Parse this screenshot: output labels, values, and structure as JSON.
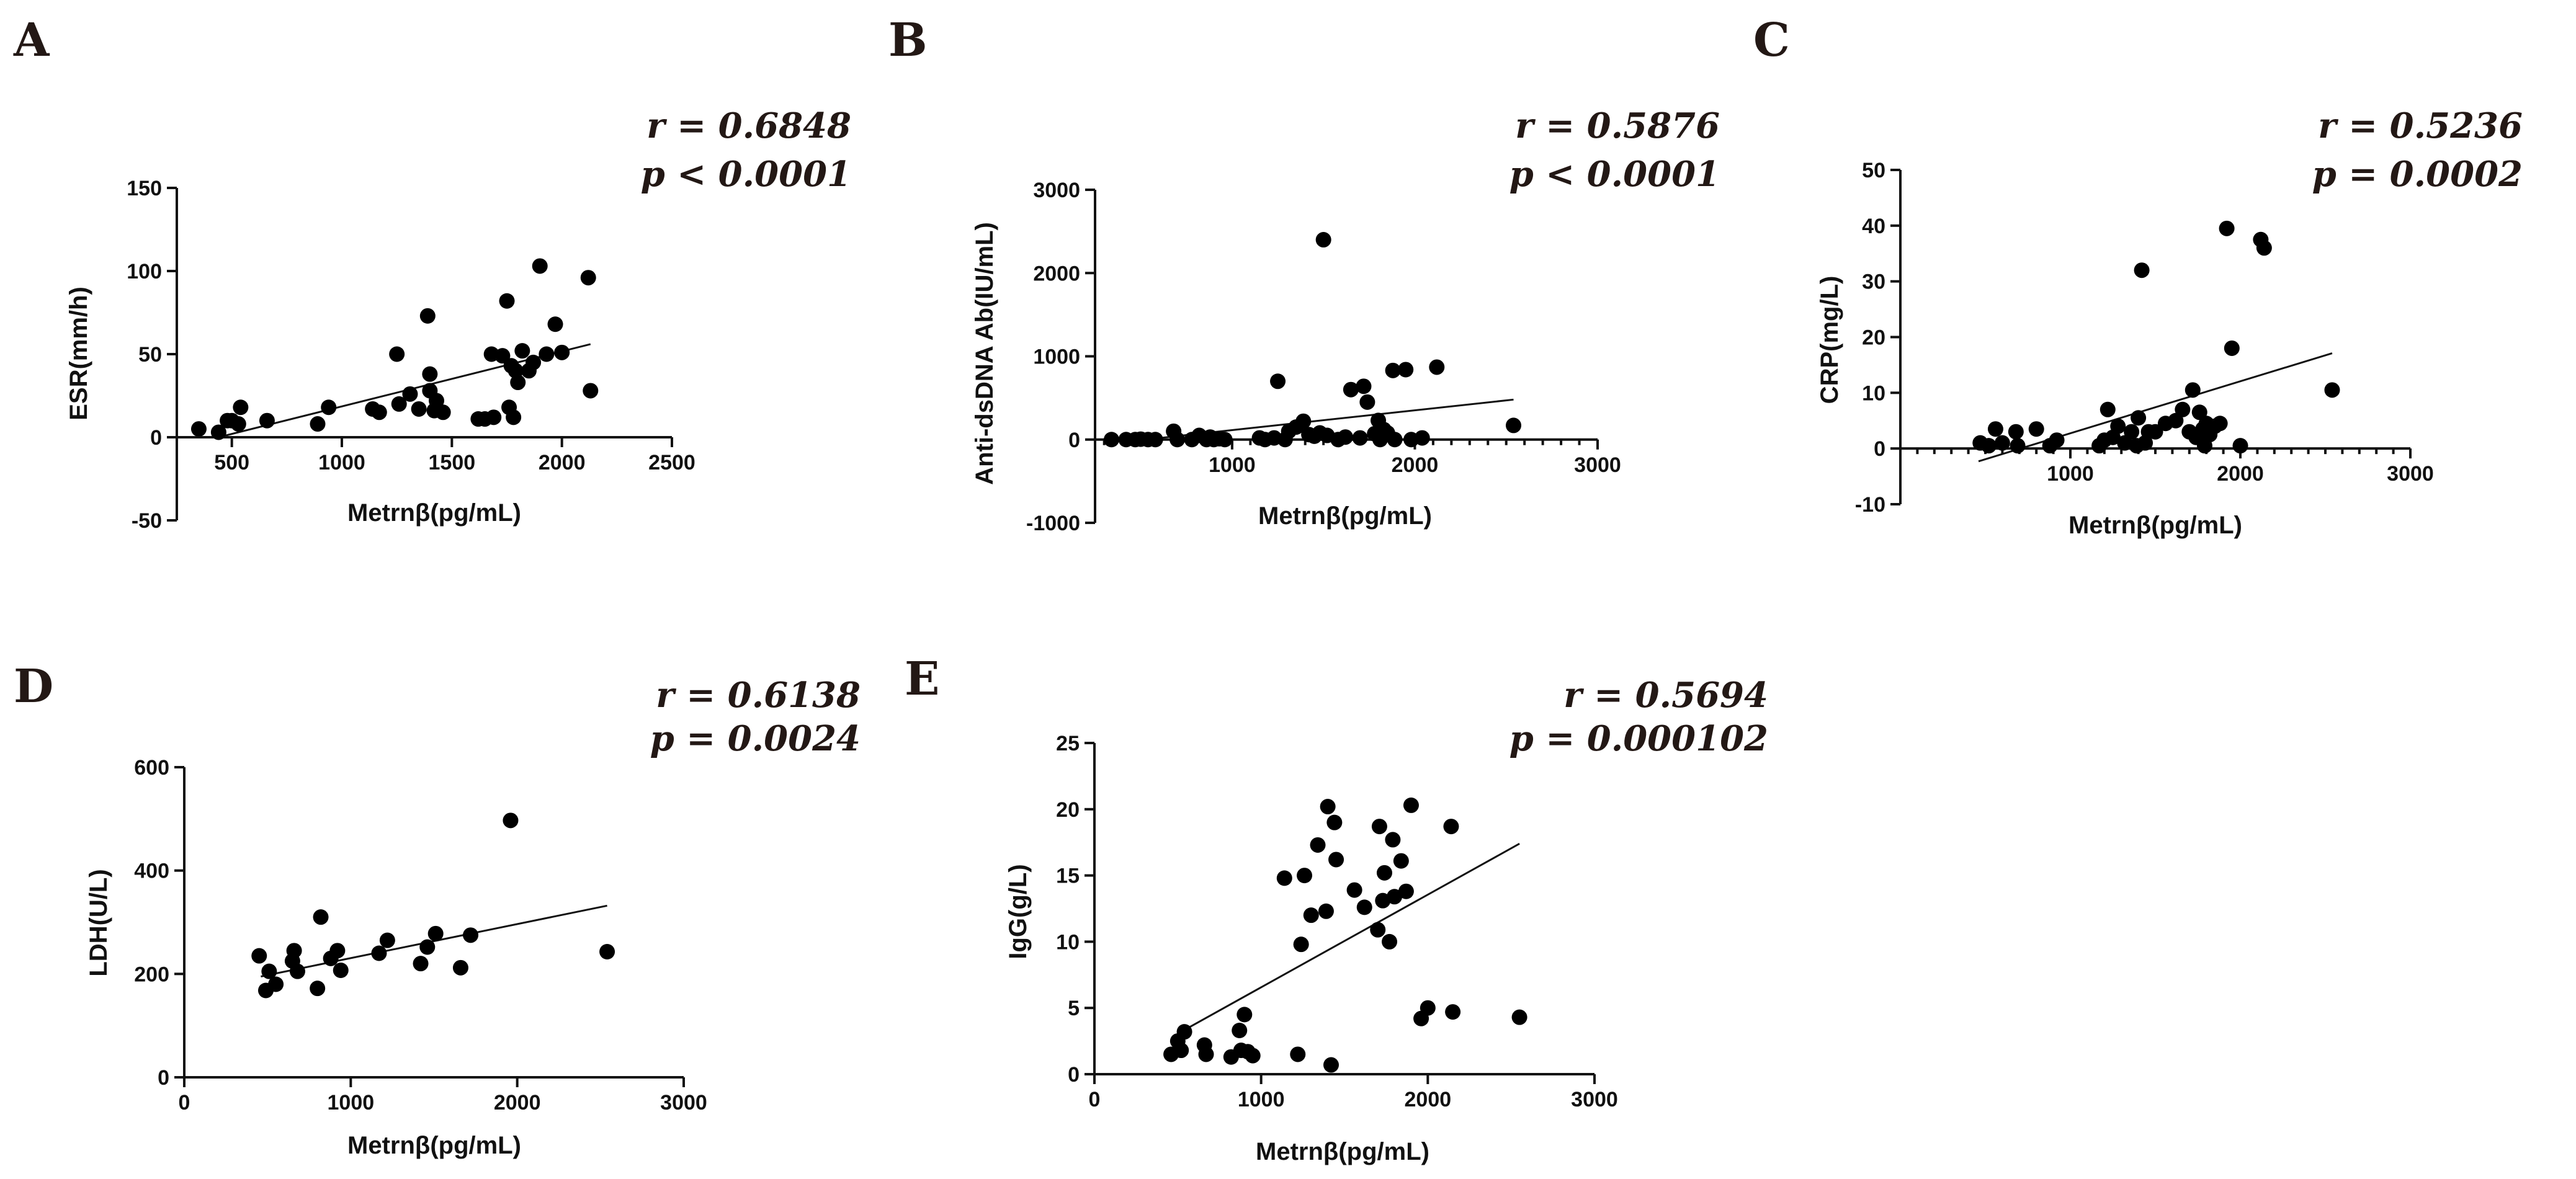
{
  "chart_data": [
    {
      "type": "scatter",
      "panel": "A",
      "ylabel": "ESR(mm/h)",
      "xlabel": "Metrnβ(pg/mL)",
      "r_text": "r = 0.6848",
      "p_text": "p < 0.0001",
      "xlim": [
        250,
        2500
      ],
      "ylim": [
        -50,
        150
      ],
      "xticks": [
        500,
        1000,
        1500,
        2000,
        2500
      ],
      "xtick_labels": [
        "500",
        "1000",
        "1500",
        "2000",
        "2500"
      ],
      "yticks": [
        -50,
        0,
        50,
        100,
        150
      ],
      "ytick_labels": [
        "-50",
        "0",
        "50",
        "100",
        "150"
      ],
      "minor_x": false,
      "fit": {
        "x": [
          440,
          2130
        ],
        "y": [
          0,
          56
        ]
      },
      "x": [
        350,
        440,
        480,
        500,
        530,
        540,
        660,
        890,
        940,
        1140,
        1170,
        1250,
        1260,
        1310,
        1350,
        1390,
        1400,
        1400,
        1420,
        1430,
        1460,
        1620,
        1650,
        1680,
        1690,
        1730,
        1750,
        1760,
        1770,
        1780,
        1790,
        1800,
        1820,
        1850,
        1870,
        1900,
        1930,
        1970,
        2000,
        2120,
        2130
      ],
      "y": [
        5,
        3,
        10,
        10,
        8,
        18,
        10,
        8,
        18,
        17,
        15,
        50,
        20,
        26,
        17,
        73,
        28,
        38,
        16,
        22,
        15,
        11,
        11,
        50,
        12,
        49,
        82,
        18,
        43,
        12,
        40,
        33,
        52,
        40,
        45,
        103,
        50,
        68,
        51,
        96,
        28
      ]
    },
    {
      "type": "scatter",
      "panel": "B",
      "ylabel": "Anti-dsDNA Ab(IU/mL)",
      "xlabel": "Metrnβ(pg/mL)",
      "r_text": "r = 0.5876",
      "p_text": "p < 0.0001",
      "xlim": [
        250,
        3000
      ],
      "ylim": [
        -1000,
        3000
      ],
      "xticks": [
        1000,
        2000,
        3000
      ],
      "xtick_labels": [
        "1000",
        "2000",
        "3000"
      ],
      "yticks": [
        -1000,
        0,
        1000,
        2000,
        3000
      ],
      "ytick_labels": [
        "-1000",
        "0",
        "1000",
        "2000",
        "3000"
      ],
      "minor_x": true,
      "fit": {
        "x": [
          440,
          2540
        ],
        "y": [
          -20,
          480
        ]
      },
      "x": [
        340,
        420,
        470,
        500,
        540,
        580,
        680,
        700,
        780,
        820,
        860,
        880,
        900,
        930,
        960,
        1150,
        1180,
        1230,
        1250,
        1290,
        1310,
        1350,
        1390,
        1420,
        1450,
        1480,
        1500,
        1520,
        1580,
        1620,
        1650,
        1700,
        1720,
        1740,
        1780,
        1800,
        1810,
        1830,
        1850,
        1880,
        1890,
        1950,
        1980,
        2040,
        2120,
        2540
      ],
      "y": [
        0,
        0,
        0,
        5,
        0,
        0,
        100,
        0,
        0,
        50,
        0,
        30,
        0,
        10,
        0,
        20,
        0,
        20,
        700,
        0,
        100,
        150,
        220,
        60,
        40,
        80,
        2400,
        50,
        0,
        30,
        600,
        20,
        640,
        450,
        70,
        230,
        0,
        120,
        80,
        830,
        0,
        840,
        0,
        20,
        870,
        170
      ]
    },
    {
      "type": "scatter",
      "panel": "C",
      "ylabel": "CRP(mg/L)",
      "xlabel": "Metrnβ(pg/mL)",
      "r_text": "r = 0.5236",
      "p_text": "p = 0.0002",
      "xlim": [
        0,
        3000
      ],
      "ylim": [
        -10,
        50
      ],
      "xticks": [
        1000,
        2000,
        3000
      ],
      "xtick_labels": [
        "1000",
        "2000",
        "3000"
      ],
      "yticks": [
        -10,
        0,
        10,
        20,
        30,
        40,
        50
      ],
      "ytick_labels": [
        "-10",
        "0",
        "10",
        "20",
        "30",
        "40",
        "50"
      ],
      "minor_x": true,
      "fit": {
        "x": [
          460,
          2540
        ],
        "y": [
          -2.3,
          17.1
        ]
      },
      "x": [
        470,
        520,
        560,
        600,
        680,
        690,
        800,
        880,
        920,
        1170,
        1200,
        1220,
        1250,
        1280,
        1320,
        1360,
        1390,
        1400,
        1420,
        1440,
        1460,
        1500,
        1560,
        1620,
        1660,
        1700,
        1720,
        1740,
        1760,
        1780,
        1790,
        1800,
        1820,
        1850,
        1880,
        1920,
        1950,
        2000,
        2120,
        2140,
        2540
      ],
      "y": [
        1,
        0.5,
        3.5,
        1,
        3,
        0.5,
        3.5,
        0.5,
        1.5,
        0.5,
        1.5,
        7,
        2,
        4,
        1,
        3,
        0.5,
        5.5,
        32,
        1,
        3,
        3,
        4.5,
        5,
        7,
        3,
        10.5,
        2,
        6.5,
        3.5,
        0.5,
        4.5,
        2.5,
        4,
        4.5,
        39.5,
        18,
        0.5,
        37.5,
        36,
        10.5
      ]
    },
    {
      "type": "scatter",
      "panel": "D",
      "ylabel": "LDH(U/L)",
      "xlabel": "Metrnβ(pg/mL)",
      "r_text": "r = 0.6138",
      "p_text": "p = 0.0024",
      "xlim": [
        0,
        3000
      ],
      "ylim": [
        0,
        600
      ],
      "xticks": [
        0,
        1000,
        2000,
        3000
      ],
      "xtick_labels": [
        "0",
        "1000",
        "2000",
        "3000"
      ],
      "yticks": [
        0,
        200,
        400,
        600
      ],
      "ytick_labels": [
        "0",
        "200",
        "400",
        "600"
      ],
      "minor_x": false,
      "fit": {
        "x": [
          460,
          2540
        ],
        "y": [
          195,
          332
        ]
      },
      "x": [
        450,
        490,
        510,
        550,
        650,
        660,
        680,
        800,
        820,
        880,
        920,
        940,
        1170,
        1220,
        1420,
        1460,
        1510,
        1660,
        1720,
        1960,
        2540
      ],
      "y": [
        235,
        168,
        205,
        180,
        225,
        245,
        205,
        172,
        310,
        230,
        245,
        207,
        240,
        265,
        220,
        252,
        278,
        212,
        275,
        497,
        243
      ]
    },
    {
      "type": "scatter",
      "panel": "E",
      "ylabel": "IgG(g/L)",
      "xlabel": "Metrnβ(pg/mL)",
      "r_text": "r = 0.5694",
      "p_text": "p = 0.000102",
      "xlim": [
        0,
        3000
      ],
      "ylim": [
        0,
        25
      ],
      "xticks": [
        0,
        1000,
        2000,
        3000
      ],
      "xtick_labels": [
        "0",
        "1000",
        "2000",
        "3000"
      ],
      "yticks": [
        0,
        5,
        10,
        15,
        20,
        25
      ],
      "ytick_labels": [
        "0",
        "5",
        "10",
        "15",
        "20",
        "25"
      ],
      "minor_x": false,
      "fit": {
        "x": [
          520,
          2550
        ],
        "y": [
          3.2,
          17.4
        ]
      },
      "x": [
        460,
        500,
        520,
        540,
        660,
        670,
        820,
        870,
        880,
        900,
        920,
        950,
        1140,
        1220,
        1240,
        1260,
        1300,
        1340,
        1390,
        1400,
        1420,
        1440,
        1450,
        1560,
        1620,
        1700,
        1710,
        1730,
        1740,
        1770,
        1790,
        1800,
        1840,
        1870,
        1900,
        1960,
        2000,
        2140,
        2150,
        2550
      ],
      "y": [
        1.5,
        2.5,
        1.8,
        3.2,
        2.2,
        1.5,
        1.3,
        3.3,
        1.8,
        4.5,
        1.7,
        1.4,
        14.8,
        1.5,
        9.8,
        15.0,
        12.0,
        17.3,
        12.3,
        20.2,
        0.7,
        19.0,
        16.2,
        13.9,
        12.6,
        10.9,
        18.7,
        13.1,
        15.2,
        10.0,
        17.7,
        13.4,
        16.1,
        13.8,
        20.3,
        4.2,
        5.0,
        18.7,
        4.7,
        4.3
      ]
    }
  ]
}
